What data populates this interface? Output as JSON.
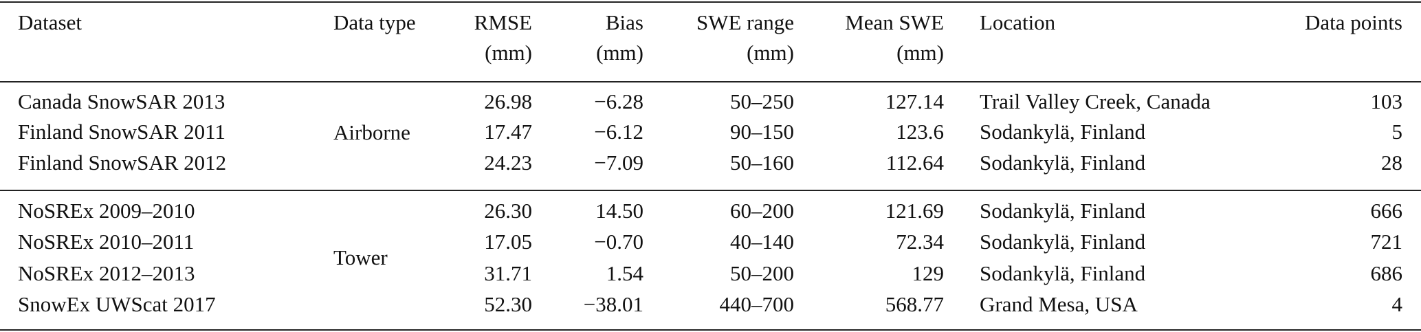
{
  "table": {
    "columns": [
      [
        "Dataset"
      ],
      [
        "Data type"
      ],
      [
        "RMSE",
        "(mm)"
      ],
      [
        "Bias",
        "(mm)"
      ],
      [
        "SWE range",
        "(mm)"
      ],
      [
        "Mean SWE",
        "(mm)"
      ],
      [
        "Location"
      ],
      [
        "Data points"
      ]
    ],
    "groups": [
      {
        "data_type": "Airborne",
        "rows": [
          [
            "Canada SnowSAR 2013",
            "26.98",
            "−6.28",
            "50–250",
            "127.14",
            "Trail Valley Creek, Canada",
            "103"
          ],
          [
            "Finland SnowSAR 2011",
            "17.47",
            "−6.12",
            "90–150",
            "123.6",
            "Sodankylä, Finland",
            "5"
          ],
          [
            "Finland SnowSAR 2012",
            "24.23",
            "−7.09",
            "50–160",
            "112.64",
            "Sodankylä, Finland",
            "28"
          ]
        ]
      },
      {
        "data_type": "Tower",
        "rows": [
          [
            "NoSREx 2009–2010",
            "26.30",
            "14.50",
            "60–200",
            "121.69",
            "Sodankylä, Finland",
            "666"
          ],
          [
            "NoSREx 2010–2011",
            "17.05",
            "−0.70",
            "40–140",
            "72.34",
            "Sodankylä, Finland",
            "721"
          ],
          [
            "NoSREx 2012–2013",
            "31.71",
            "1.54",
            "50–200",
            "129",
            "Sodankylä, Finland",
            "686"
          ],
          [
            "SnowEx UWScat 2017",
            "52.30",
            "−38.01",
            "440–700",
            "568.77",
            "Grand Mesa, USA",
            "4"
          ]
        ]
      }
    ]
  }
}
